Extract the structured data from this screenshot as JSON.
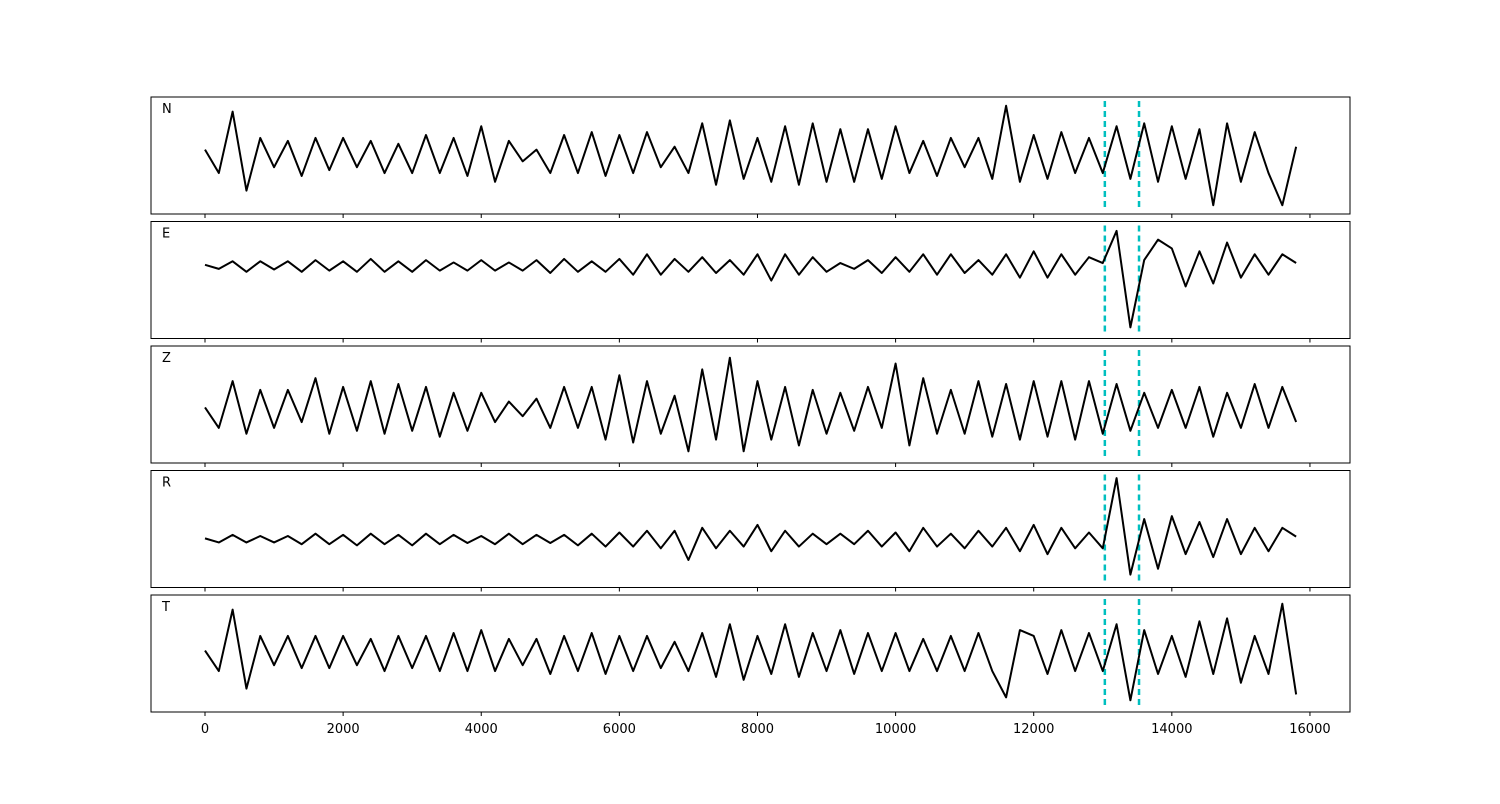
{
  "chart_data": {
    "type": "line",
    "xlim": [
      -782,
      16580
    ],
    "xticks": [
      0,
      2000,
      4000,
      6000,
      8000,
      10000,
      12000,
      14000,
      16000
    ],
    "vlines": [
      13030,
      13525
    ],
    "vline_color": "#00bfbf",
    "x": [
      0,
      200,
      400,
      600,
      800,
      1000,
      1200,
      1400,
      1600,
      1800,
      2000,
      2200,
      2400,
      2600,
      2800,
      3000,
      3200,
      3400,
      3600,
      3800,
      4000,
      4200,
      4400,
      4600,
      4800,
      5000,
      5200,
      5400,
      5600,
      5800,
      6000,
      6200,
      6400,
      6600,
      6800,
      7000,
      7200,
      7400,
      7600,
      7800,
      8000,
      8200,
      8400,
      8600,
      8800,
      9000,
      9200,
      9400,
      9600,
      9800,
      10000,
      10200,
      10400,
      10600,
      10800,
      11000,
      11200,
      11400,
      11600,
      11800,
      12000,
      12200,
      12400,
      12600,
      12800,
      13000,
      13200,
      13400,
      13600,
      13800,
      14000,
      14200,
      14400,
      14600,
      14800,
      15000,
      15200,
      15400,
      15600,
      15800
    ],
    "series": [
      {
        "name": "N",
        "color": "#000000",
        "ylim": [
          -1,
          1
        ],
        "values": [
          0.1,
          -0.3,
          0.75,
          -0.6,
          0.3,
          -0.2,
          0.25,
          -0.35,
          0.3,
          -0.25,
          0.3,
          -0.2,
          0.25,
          -0.3,
          0.2,
          -0.3,
          0.35,
          -0.3,
          0.3,
          -0.35,
          0.5,
          -0.45,
          0.25,
          -0.1,
          0.1,
          -0.3,
          0.35,
          -0.3,
          0.4,
          -0.35,
          0.35,
          -0.3,
          0.4,
          -0.2,
          0.15,
          -0.3,
          0.55,
          -0.5,
          0.6,
          -0.4,
          0.3,
          -0.45,
          0.5,
          -0.5,
          0.55,
          -0.45,
          0.45,
          -0.45,
          0.45,
          -0.4,
          0.5,
          -0.3,
          0.25,
          -0.35,
          0.3,
          -0.2,
          0.3,
          -0.4,
          0.85,
          -0.45,
          0.35,
          -0.4,
          0.4,
          -0.3,
          0.3,
          -0.3,
          0.5,
          -0.4,
          0.55,
          -0.45,
          0.5,
          -0.4,
          0.45,
          -0.85,
          0.55,
          -0.45,
          0.4,
          -0.3,
          -0.85,
          0.15
        ]
      },
      {
        "name": "E",
        "color": "#000000",
        "ylim": [
          -1.24,
          0.76
        ],
        "values": [
          0.02,
          -0.05,
          0.08,
          -0.1,
          0.08,
          -0.06,
          0.08,
          -0.1,
          0.1,
          -0.08,
          0.08,
          -0.1,
          0.12,
          -0.1,
          0.08,
          -0.1,
          0.1,
          -0.08,
          0.06,
          -0.08,
          0.1,
          -0.08,
          0.06,
          -0.08,
          0.1,
          -0.12,
          0.12,
          -0.1,
          0.08,
          -0.1,
          0.12,
          -0.15,
          0.2,
          -0.15,
          0.12,
          -0.1,
          0.15,
          -0.12,
          0.1,
          -0.15,
          0.2,
          -0.25,
          0.2,
          -0.15,
          0.15,
          -0.1,
          0.05,
          -0.05,
          0.1,
          -0.12,
          0.15,
          -0.1,
          0.2,
          -0.15,
          0.2,
          -0.12,
          0.1,
          -0.15,
          0.2,
          -0.2,
          0.25,
          -0.2,
          0.2,
          -0.15,
          0.15,
          0.05,
          0.6,
          -1.05,
          0.1,
          0.45,
          0.3,
          -0.35,
          0.25,
          -0.3,
          0.4,
          -0.2,
          0.2,
          -0.15,
          0.2,
          0.05
        ]
      },
      {
        "name": "Z",
        "color": "#000000",
        "ylim": [
          -0.9,
          1.1
        ],
        "values": [
          0.05,
          -0.3,
          0.5,
          -0.4,
          0.35,
          -0.3,
          0.35,
          -0.2,
          0.55,
          -0.4,
          0.4,
          -0.35,
          0.5,
          -0.4,
          0.45,
          -0.35,
          0.4,
          -0.45,
          0.3,
          -0.35,
          0.3,
          -0.2,
          0.15,
          -0.1,
          0.2,
          -0.3,
          0.4,
          -0.3,
          0.4,
          -0.5,
          0.6,
          -0.55,
          0.5,
          -0.4,
          0.25,
          -0.7,
          0.7,
          -0.5,
          0.9,
          -0.7,
          0.5,
          -0.5,
          0.4,
          -0.6,
          0.35,
          -0.4,
          0.3,
          -0.35,
          0.4,
          -0.3,
          0.8,
          -0.6,
          0.55,
          -0.4,
          0.35,
          -0.4,
          0.5,
          -0.45,
          0.45,
          -0.5,
          0.5,
          -0.45,
          0.5,
          -0.5,
          0.5,
          -0.4,
          0.45,
          -0.35,
          0.3,
          -0.3,
          0.35,
          -0.3,
          0.4,
          -0.45,
          0.3,
          -0.3,
          0.45,
          -0.3,
          0.4,
          -0.2
        ]
      },
      {
        "name": "R",
        "color": "#000000",
        "ylim": [
          -0.82,
          1.18
        ],
        "values": [
          0.02,
          -0.05,
          0.08,
          -0.05,
          0.06,
          -0.05,
          0.06,
          -0.08,
          0.1,
          -0.08,
          0.08,
          -0.1,
          0.1,
          -0.08,
          0.08,
          -0.1,
          0.1,
          -0.08,
          0.08,
          -0.06,
          0.06,
          -0.08,
          0.1,
          -0.08,
          0.08,
          -0.06,
          0.08,
          -0.1,
          0.1,
          -0.12,
          0.12,
          -0.12,
          0.15,
          -0.15,
          0.15,
          -0.35,
          0.2,
          -0.15,
          0.15,
          -0.12,
          0.25,
          -0.2,
          0.15,
          -0.12,
          0.1,
          -0.08,
          0.1,
          -0.08,
          0.15,
          -0.12,
          0.12,
          -0.2,
          0.2,
          -0.12,
          0.1,
          -0.15,
          0.15,
          -0.12,
          0.2,
          -0.2,
          0.25,
          -0.25,
          0.2,
          -0.15,
          0.12,
          -0.15,
          1.05,
          -0.6,
          0.35,
          -0.5,
          0.4,
          -0.25,
          0.3,
          -0.3,
          0.35,
          -0.25,
          0.2,
          -0.2,
          0.2,
          0.05
        ]
      },
      {
        "name": "T",
        "color": "#000000",
        "ylim": [
          -1,
          1
        ],
        "values": [
          0.05,
          -0.3,
          0.75,
          -0.6,
          0.3,
          -0.2,
          0.3,
          -0.25,
          0.3,
          -0.25,
          0.3,
          -0.2,
          0.25,
          -0.3,
          0.3,
          -0.25,
          0.3,
          -0.3,
          0.35,
          -0.3,
          0.4,
          -0.3,
          0.25,
          -0.2,
          0.25,
          -0.35,
          0.3,
          -0.3,
          0.35,
          -0.35,
          0.3,
          -0.3,
          0.3,
          -0.25,
          0.2,
          -0.3,
          0.35,
          -0.4,
          0.5,
          -0.45,
          0.3,
          -0.35,
          0.5,
          -0.4,
          0.35,
          -0.3,
          0.4,
          -0.35,
          0.35,
          -0.3,
          0.35,
          -0.3,
          0.25,
          -0.3,
          0.3,
          -0.3,
          0.35,
          -0.3,
          -0.75,
          0.4,
          0.3,
          -0.35,
          0.4,
          -0.3,
          0.35,
          -0.3,
          0.5,
          -0.8,
          0.4,
          -0.35,
          0.3,
          -0.4,
          0.55,
          -0.35,
          0.6,
          -0.5,
          0.3,
          -0.35,
          0.85,
          -0.7
        ]
      }
    ]
  }
}
